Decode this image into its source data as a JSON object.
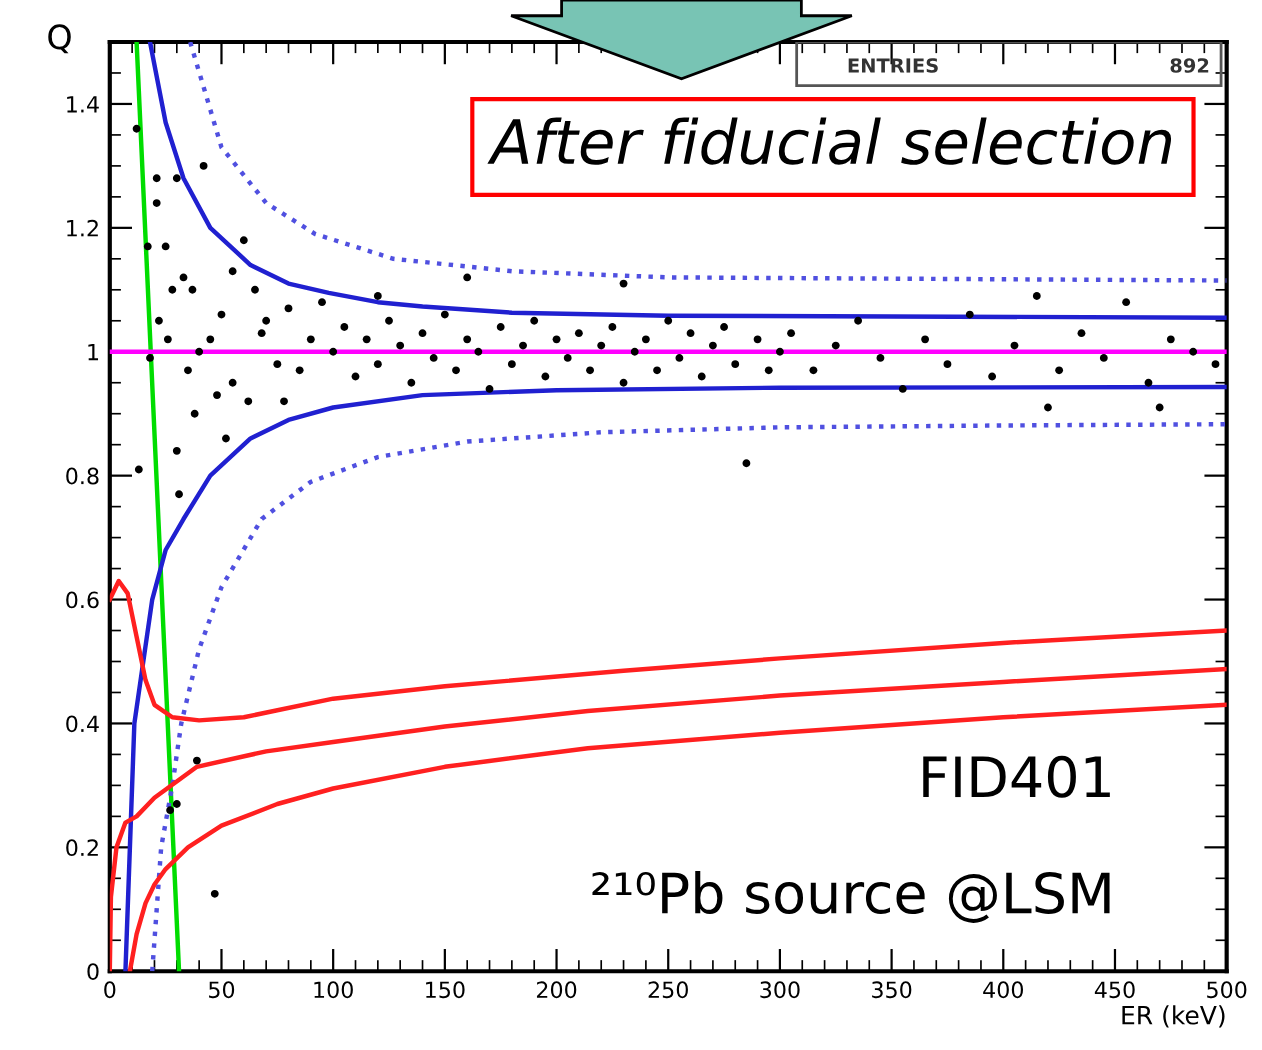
{
  "chart_data": {
    "type": "scatter",
    "xlabel": "ER (keV)",
    "ylabel": "Q",
    "xlim": [
      0,
      500
    ],
    "ylim": [
      0,
      1.5
    ],
    "xticks": [
      0,
      50,
      100,
      150,
      200,
      250,
      300,
      350,
      400,
      450,
      500
    ],
    "yticks": [
      0,
      0.2,
      0.4,
      0.6,
      0.8,
      1,
      1.2,
      1.4
    ],
    "grid": false,
    "annotations": [
      "After fiducial selection",
      "FID401",
      "²¹⁰Pb source @LSM",
      "ENTRIES",
      "892"
    ],
    "ref_lines": [
      {
        "axis": "y",
        "value": 1,
        "color": "#ff00ff",
        "line_style": "solid"
      }
    ],
    "series": [
      {
        "color": "#000000",
        "marker": "circle",
        "x": [
          12,
          21,
          21,
          17,
          25,
          30,
          42,
          28,
          33,
          37,
          22,
          26,
          18,
          35,
          40,
          45,
          50,
          55,
          60,
          65,
          70,
          75,
          48,
          38,
          52,
          30,
          13,
          31,
          55,
          62,
          68,
          80,
          85,
          90,
          95,
          78,
          100,
          105,
          110,
          115,
          120,
          125,
          130,
          135,
          140,
          145,
          150,
          155,
          160,
          165,
          170,
          175,
          180,
          185,
          190,
          195,
          200,
          205,
          210,
          215,
          220,
          225,
          230,
          235,
          240,
          245,
          250,
          255,
          260,
          265,
          270,
          275,
          280,
          285,
          290,
          295,
          300,
          160,
          230,
          120,
          305,
          315,
          325,
          335,
          345,
          355,
          365,
          375,
          385,
          395,
          405,
          415,
          425,
          435,
          445,
          455,
          465,
          475,
          485,
          495,
          420,
          470,
          39,
          47,
          30,
          27
        ],
        "values": [
          1.36,
          1.28,
          1.24,
          1.17,
          1.17,
          1.28,
          1.3,
          1.1,
          1.12,
          1.1,
          1.05,
          1.02,
          0.99,
          0.97,
          1.0,
          1.02,
          1.06,
          1.13,
          1.18,
          1.1,
          1.05,
          0.98,
          0.93,
          0.9,
          0.86,
          0.84,
          0.81,
          0.77,
          0.95,
          0.92,
          1.03,
          1.07,
          0.97,
          1.02,
          1.08,
          0.92,
          1.0,
          1.04,
          0.96,
          1.02,
          0.98,
          1.05,
          1.01,
          0.95,
          1.03,
          0.99,
          1.06,
          0.97,
          1.02,
          1.0,
          0.94,
          1.04,
          0.98,
          1.01,
          1.05,
          0.96,
          1.02,
          0.99,
          1.03,
          0.97,
          1.01,
          1.04,
          0.95,
          1.0,
          1.02,
          0.97,
          1.05,
          0.99,
          1.03,
          0.96,
          1.01,
          1.04,
          0.98,
          0.82,
          1.02,
          0.97,
          1.0,
          1.12,
          1.11,
          1.09,
          1.03,
          0.97,
          1.01,
          1.05,
          0.99,
          0.94,
          1.02,
          0.98,
          1.06,
          0.96,
          1.01,
          1.09,
          0.97,
          1.03,
          0.99,
          1.08,
          0.95,
          1.02,
          1.0,
          0.98,
          0.91,
          0.91,
          0.34,
          0.125,
          0.27,
          0.26
        ]
      },
      {
        "type": "line",
        "color": "#00dd00",
        "line_style": "solid",
        "x": [
          12,
          31
        ],
        "values": [
          1.5,
          0
        ]
      },
      {
        "type": "line",
        "color": "#2020d0",
        "line_style": "solid",
        "x": [
          18,
          25,
          33,
          45,
          63,
          80,
          98,
          120,
          140,
          180,
          250,
          350,
          500
        ],
        "values": [
          1.5,
          1.37,
          1.28,
          1.2,
          1.14,
          1.11,
          1.095,
          1.08,
          1.073,
          1.063,
          1.058,
          1.057,
          1.055
        ]
      },
      {
        "type": "line",
        "color": "#2020d0",
        "line_style": "solid",
        "x": [
          7,
          9,
          11,
          15,
          19,
          25,
          33,
          45,
          63,
          80,
          100,
          140,
          200,
          300,
          500
        ],
        "values": [
          0,
          0.2,
          0.4,
          0.5,
          0.6,
          0.68,
          0.73,
          0.8,
          0.86,
          0.89,
          0.91,
          0.93,
          0.938,
          0.942,
          0.943
        ]
      },
      {
        "type": "line",
        "color": "#5050e0",
        "line_style": "dotted",
        "x": [
          36,
          50,
          70,
          92,
          127,
          180,
          250,
          350,
          500
        ],
        "values": [
          1.5,
          1.33,
          1.24,
          1.19,
          1.15,
          1.13,
          1.12,
          1.118,
          1.115
        ]
      },
      {
        "type": "line",
        "color": "#5050e0",
        "line_style": "dotted",
        "x": [
          19,
          23,
          28,
          32,
          40,
          50,
          68,
          90,
          120,
          160,
          220,
          300,
          400,
          500
        ],
        "values": [
          0,
          0.2,
          0.3,
          0.4,
          0.52,
          0.62,
          0.73,
          0.79,
          0.83,
          0.855,
          0.87,
          0.878,
          0.881,
          0.883
        ]
      },
      {
        "type": "line",
        "color": "#ff2020",
        "line_style": "solid",
        "x": [
          0,
          4,
          8,
          12,
          16,
          20,
          28,
          40,
          60,
          100,
          150,
          230,
          300,
          400,
          500
        ],
        "values": [
          0.6,
          0.63,
          0.61,
          0.54,
          0.47,
          0.43,
          0.41,
          0.405,
          0.41,
          0.44,
          0.46,
          0.485,
          0.505,
          0.53,
          0.55
        ]
      },
      {
        "type": "line",
        "color": "#ff2020",
        "line_style": "solid",
        "x": [
          0,
          0.5,
          3,
          7,
          12,
          20,
          39,
          70,
          100,
          150,
          214,
          300,
          400,
          500
        ],
        "values": [
          0,
          0.12,
          0.2,
          0.24,
          0.25,
          0.28,
          0.33,
          0.355,
          0.37,
          0.395,
          0.42,
          0.445,
          0.467,
          0.488
        ]
      },
      {
        "type": "line",
        "color": "#ff2020",
        "line_style": "solid",
        "x": [
          9,
          12,
          16,
          20,
          25,
          35,
          50,
          75,
          100,
          150,
          214,
          300,
          400,
          500
        ],
        "values": [
          0,
          0.06,
          0.11,
          0.14,
          0.165,
          0.2,
          0.235,
          0.27,
          0.295,
          0.33,
          0.36,
          0.385,
          0.41,
          0.43
        ]
      }
    ]
  }
}
